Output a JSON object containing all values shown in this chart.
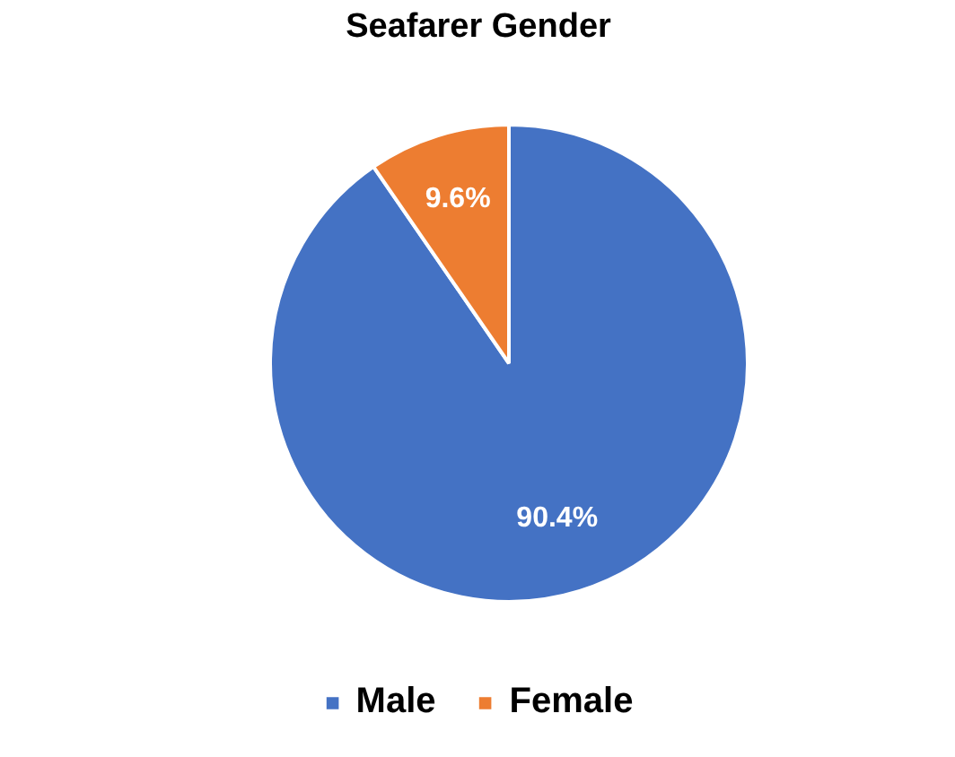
{
  "chart_data": {
    "type": "pie",
    "title": "Seafarer Gender",
    "categories": [
      "Male",
      "Female"
    ],
    "values": [
      90.4,
      9.6
    ],
    "colors": [
      "#4472c4",
      "#ed7d31"
    ],
    "value_labels": [
      "90.4%",
      "9.6%"
    ],
    "legend": "bottom"
  }
}
